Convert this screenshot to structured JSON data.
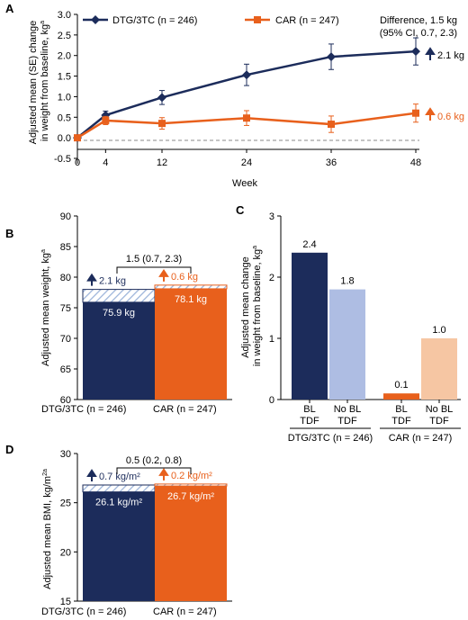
{
  "colors": {
    "dtg": "#1c2c5b",
    "car": "#e8601c",
    "dtg_light": "#aebde3",
    "car_light": "#f6c6a3"
  },
  "panels": {
    "A": "A",
    "B": "B",
    "C": "C",
    "D": "D"
  },
  "chart_data": [
    {
      "panel": "A",
      "type": "line",
      "xlabel": "Week",
      "ylabel": "Adjusted mean (SE) change in weight from baseline, kg",
      "ylabel_sup": "a",
      "x": [
        0,
        4,
        12,
        24,
        36,
        48
      ],
      "xticks": [
        "0",
        "4",
        "12",
        "24",
        "36",
        "48"
      ],
      "yticks": [
        "-0.5",
        "0.0",
        "0.5",
        "1.0",
        "1.5",
        "2.0",
        "2.5",
        "3.0"
      ],
      "ylim": [
        -0.5,
        3.0
      ],
      "xlim": [
        0,
        48
      ],
      "reference_line": 0,
      "series": [
        {
          "name": "DTG/3TC (n = 246)",
          "values": [
            0,
            0.55,
            0.98,
            1.53,
            1.97,
            2.1
          ],
          "err": [
            0,
            0.1,
            0.17,
            0.26,
            0.31,
            0.33
          ],
          "marker": "diamond",
          "end_label": "2.1 kg"
        },
        {
          "name": "CAR (n = 247)",
          "values": [
            0,
            0.42,
            0.35,
            0.48,
            0.33,
            0.6
          ],
          "err": [
            0,
            0.1,
            0.14,
            0.18,
            0.2,
            0.22
          ],
          "marker": "square",
          "end_label": "0.6 kg"
        }
      ],
      "annotation_line1": "Difference, 1.5 kg",
      "annotation_line2": "(95% CI, 0.7, 2.3)"
    },
    {
      "panel": "B",
      "type": "bar",
      "ylabel": "Adjusted mean weight, kg",
      "ylabel_sup": "a",
      "ylim": [
        60,
        90
      ],
      "yticks": [
        "60",
        "65",
        "70",
        "75",
        "80",
        "85",
        "90"
      ],
      "categories": [
        "DTG/3TC (n = 246)",
        "CAR (n = 247)"
      ],
      "values": [
        75.9,
        78.1
      ],
      "increase": [
        2.1,
        0.6
      ],
      "value_labels": [
        "75.9 kg",
        "78.1 kg"
      ],
      "increase_labels": [
        "2.1 kg",
        "0.6 kg"
      ],
      "difference_label": "1.5 (0.7, 2.3)"
    },
    {
      "panel": "C",
      "type": "bar",
      "ylabel": "Adjusted mean change in weight from baseline, kg",
      "ylabel_sup": "a",
      "ylim": [
        0,
        3
      ],
      "yticks": [
        "0",
        "1",
        "2",
        "3"
      ],
      "categories": [
        "BL TDF",
        "No BL TDF",
        "BL TDF",
        "No BL TDF"
      ],
      "category_lines": [
        [
          "BL",
          "TDF"
        ],
        [
          "No BL",
          "TDF"
        ],
        [
          "BL",
          "TDF"
        ],
        [
          "No BL",
          "TDF"
        ]
      ],
      "groups": [
        "DTG/3TC (n = 246)",
        "CAR (n = 247)"
      ],
      "values": [
        2.4,
        1.8,
        0.1,
        1.0
      ],
      "value_labels": [
        "2.4",
        "1.8",
        "0.1",
        "1.0"
      ]
    },
    {
      "panel": "D",
      "type": "bar",
      "ylabel": "Adjusted mean BMI, kg/m",
      "ylabel_sup": "2a",
      "ylim": [
        15,
        30
      ],
      "yticks": [
        "15",
        "20",
        "25",
        "30"
      ],
      "categories": [
        "DTG/3TC (n = 246)",
        "CAR (n = 247)"
      ],
      "values": [
        26.1,
        26.7
      ],
      "increase": [
        0.7,
        0.2
      ],
      "value_labels": [
        "26.1 kg/m²",
        "26.7 kg/m²"
      ],
      "increase_labels": [
        "0.7 kg/m²",
        "0.2 kg/m²"
      ],
      "difference_label": "0.5 (0.2, 0.8)"
    }
  ]
}
